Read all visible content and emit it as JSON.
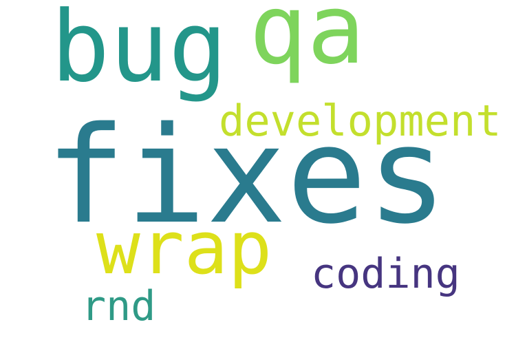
{
  "word_cloud": {
    "background_color": "#ffffff",
    "words": [
      {
        "id": "fixes",
        "text": "fixes",
        "color": "#2a7b8e"
      },
      {
        "id": "bug",
        "text": "bug",
        "color": "#23968a"
      },
      {
        "id": "qa",
        "text": "qa",
        "color": "#7ed45c"
      },
      {
        "id": "development",
        "text": "development",
        "color": "#c3df2d"
      },
      {
        "id": "wrap",
        "text": "wrap",
        "color": "#dde01a"
      },
      {
        "id": "coding",
        "text": "coding",
        "color": "#463580"
      },
      {
        "id": "rnd",
        "text": "rnd",
        "color": "#2f9a86"
      }
    ]
  }
}
